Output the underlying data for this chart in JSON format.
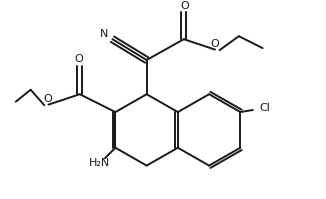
{
  "bg_color": "#ffffff",
  "line_color": "#1a1a1a",
  "lw": 1.4,
  "figsize": [
    3.26,
    1.99
  ],
  "dpi": 100,
  "xlim": [
    0,
    10
  ],
  "ylim": [
    0,
    6.5
  ]
}
